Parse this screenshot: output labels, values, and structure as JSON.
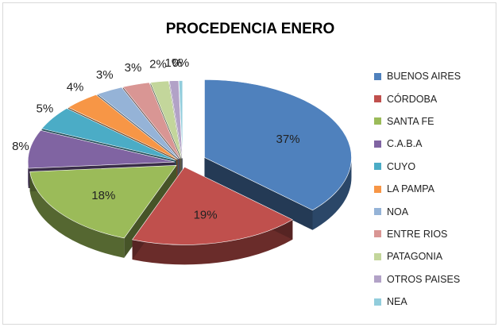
{
  "chart_data": {
    "type": "pie",
    "title": "PROCEDENCIA ENERO",
    "legend_position": "right",
    "slices": [
      {
        "name": "BUENOS AIRES",
        "value": 37,
        "label": "37%",
        "color": "#4f81bd"
      },
      {
        "name": "CÓRDOBA",
        "value": 19,
        "label": "19%",
        "color": "#c0504d"
      },
      {
        "name": "SANTA FE",
        "value": 18,
        "label": "18%",
        "color": "#9bbb59"
      },
      {
        "name": "C.A.B.A",
        "value": 8,
        "label": "8%",
        "color": "#8064a2"
      },
      {
        "name": "CUYO",
        "value": 5,
        "label": "5%",
        "color": "#4bacc6"
      },
      {
        "name": "LA PAMPA",
        "value": 4,
        "label": "4%",
        "color": "#f79646"
      },
      {
        "name": "NOA",
        "value": 3,
        "label": "3%",
        "color": "#95b3d7"
      },
      {
        "name": "ENTRE RIOS",
        "value": 3,
        "label": "3%",
        "color": "#d99694"
      },
      {
        "name": "PATAGONIA",
        "value": 2,
        "label": "2%",
        "color": "#c3d69b"
      },
      {
        "name": "OTROS PAISES",
        "value": 1,
        "label": "1%",
        "color": "#b2a2c7"
      },
      {
        "name": "NEA",
        "value": 0.4,
        "label": "0%",
        "color": "#92cddc"
      }
    ]
  }
}
